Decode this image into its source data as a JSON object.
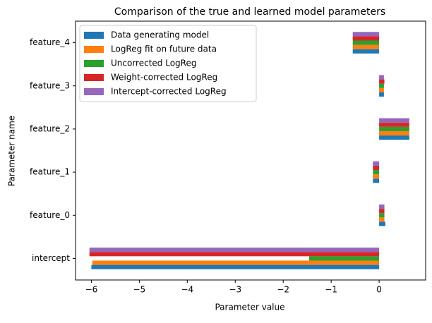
{
  "chart_data": {
    "type": "barh",
    "title": "Comparison of the true and learned model parameters",
    "xlabel": "Parameter value",
    "ylabel": "Parameter name",
    "categories": [
      "intercept",
      "feature_0",
      "feature_1",
      "feature_2",
      "feature_3",
      "feature_4"
    ],
    "series": [
      {
        "name": "Data generating model",
        "color": "#1f77b4",
        "values": [
          -6.0,
          0.13,
          -0.13,
          0.63,
          0.1,
          -0.55
        ]
      },
      {
        "name": "LogReg fit on future data",
        "color": "#ff7f0e",
        "values": [
          -5.98,
          0.11,
          -0.13,
          0.63,
          0.1,
          -0.55
        ]
      },
      {
        "name": "Uncorrected LogReg",
        "color": "#2ca02c",
        "values": [
          -1.46,
          0.11,
          -0.13,
          0.63,
          0.1,
          -0.55
        ]
      },
      {
        "name": "Weight-corrected LogReg",
        "color": "#d62728",
        "values": [
          -6.04,
          0.11,
          -0.13,
          0.63,
          0.11,
          -0.55
        ]
      },
      {
        "name": "Intercept-corrected LogReg",
        "color": "#9467bd",
        "values": [
          -6.04,
          0.11,
          -0.13,
          0.63,
          0.1,
          -0.55
        ]
      }
    ],
    "xlim": [
      -6.33,
      0.97
    ],
    "xticks": [
      {
        "value": -6,
        "label": "−6"
      },
      {
        "value": -5,
        "label": "−5"
      },
      {
        "value": -4,
        "label": "−4"
      },
      {
        "value": -3,
        "label": "−3"
      },
      {
        "value": -2,
        "label": "−2"
      },
      {
        "value": -1,
        "label": "−1"
      },
      0
    ],
    "legend": "upper left"
  }
}
